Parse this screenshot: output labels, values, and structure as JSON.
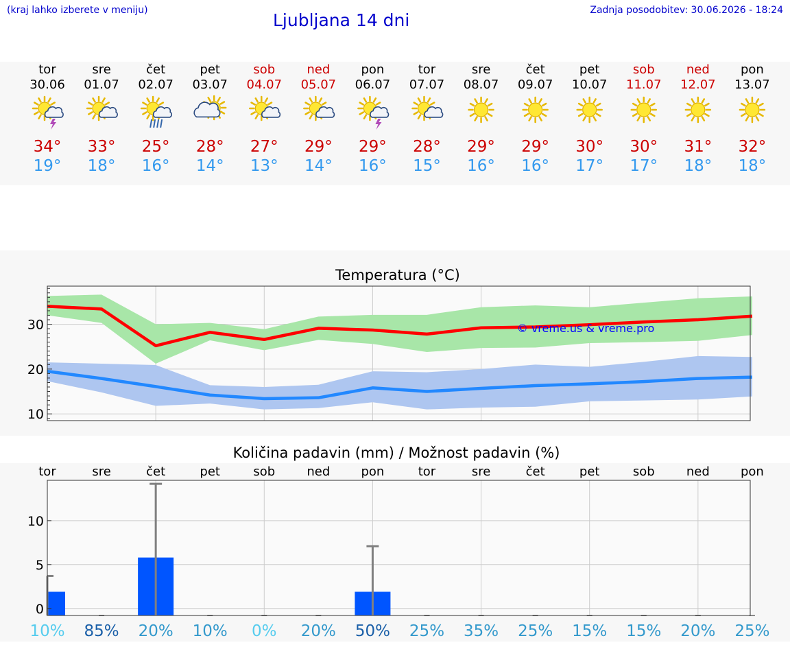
{
  "header": {
    "menu_hint": "(kraj lahko izberete v meniju)",
    "title": "Ljubljana 14 dni",
    "updated": "Zadnja posodobitev: 30.06.2026 - 18:24"
  },
  "days": [
    {
      "dow": "tor",
      "date": "30.06",
      "weekend": false,
      "icon": "sun-cloud-thunder-icon",
      "max": "34°",
      "min": "19°"
    },
    {
      "dow": "sre",
      "date": "01.07",
      "weekend": false,
      "icon": "sun-cloud-icon",
      "max": "33°",
      "min": "18°"
    },
    {
      "dow": "čet",
      "date": "02.07",
      "weekend": false,
      "icon": "sun-cloud-rain-icon",
      "max": "25°",
      "min": "16°"
    },
    {
      "dow": "pet",
      "date": "03.07",
      "weekend": false,
      "icon": "sun-big-cloud-icon",
      "max": "28°",
      "min": "14°"
    },
    {
      "dow": "sob",
      "date": "04.07",
      "weekend": true,
      "icon": "sun-cloud-icon",
      "max": "27°",
      "min": "13°"
    },
    {
      "dow": "ned",
      "date": "05.07",
      "weekend": true,
      "icon": "sun-cloud-icon",
      "max": "29°",
      "min": "14°"
    },
    {
      "dow": "pon",
      "date": "06.07",
      "weekend": false,
      "icon": "sun-cloud-thunder-icon",
      "max": "29°",
      "min": "16°"
    },
    {
      "dow": "tor",
      "date": "07.07",
      "weekend": false,
      "icon": "sun-cloud-icon",
      "max": "28°",
      "min": "15°"
    },
    {
      "dow": "sre",
      "date": "08.07",
      "weekend": false,
      "icon": "sun-icon",
      "max": "29°",
      "min": "16°"
    },
    {
      "dow": "čet",
      "date": "09.07",
      "weekend": false,
      "icon": "sun-icon",
      "max": "29°",
      "min": "16°"
    },
    {
      "dow": "pet",
      "date": "10.07",
      "weekend": false,
      "icon": "sun-icon",
      "max": "30°",
      "min": "17°"
    },
    {
      "dow": "sob",
      "date": "11.07",
      "weekend": true,
      "icon": "sun-icon",
      "max": "30°",
      "min": "17°"
    },
    {
      "dow": "ned",
      "date": "12.07",
      "weekend": true,
      "icon": "sun-icon",
      "max": "31°",
      "min": "18°"
    },
    {
      "dow": "pon",
      "date": "13.07",
      "weekend": false,
      "icon": "sun-icon",
      "max": "32°",
      "min": "18°"
    }
  ],
  "colors": {
    "weekday": "#000000",
    "weekend": "#cc0000",
    "max": "#cc0000",
    "min": "#3399ee",
    "max_line": "#ff0000",
    "max_band": "#a8e6a8",
    "min_line": "#2288ff",
    "min_band": "#aec6f0",
    "bar": "#0055ff",
    "errbar": "#808080",
    "watermark": "#0000ff"
  },
  "chart_data": [
    {
      "type": "line",
      "title": "Temperatura (°C)",
      "watermark": "© vreme.us & vreme.pro",
      "x": [
        "30.06",
        "01.07",
        "02.07",
        "03.07",
        "04.07",
        "05.07",
        "06.07",
        "07.07",
        "08.07",
        "09.07",
        "10.07",
        "11.07",
        "12.07",
        "13.07"
      ],
      "yticks": [
        10,
        20,
        30
      ],
      "ylim": [
        8.5,
        38.5
      ],
      "grid": true,
      "series": [
        {
          "role": "max",
          "values": [
            34,
            33.4,
            25.2,
            28.2,
            26.6,
            29.1,
            28.7,
            27.8,
            29.2,
            29.4,
            29.9,
            30.5,
            31.0,
            31.8
          ],
          "band_low": [
            32,
            30.3,
            21.2,
            26.4,
            24.2,
            26.5,
            25.6,
            23.8,
            24.7,
            24.8,
            25.8,
            26.0,
            26.3,
            27.6
          ],
          "band_high": [
            36.3,
            36.6,
            30.0,
            30.3,
            28.9,
            31.7,
            32.1,
            32.1,
            33.8,
            34.2,
            33.8,
            34.8,
            35.8,
            36.2
          ]
        },
        {
          "role": "min",
          "values": [
            19.5,
            17.9,
            16.1,
            14.2,
            13.4,
            13.6,
            15.8,
            15.0,
            15.7,
            16.3,
            16.7,
            17.2,
            17.9,
            18.2
          ],
          "band_low": [
            17.3,
            14.8,
            11.8,
            12.3,
            11.0,
            11.3,
            12.6,
            11.0,
            11.4,
            11.6,
            12.8,
            13.0,
            13.2,
            13.9
          ],
          "band_high": [
            21.5,
            21.2,
            20.9,
            16.4,
            16.0,
            16.5,
            19.5,
            19.3,
            20.0,
            21.0,
            20.5,
            21.6,
            22.9,
            22.7
          ]
        }
      ]
    },
    {
      "type": "bar",
      "title": "Količina padavin (mm) / Možnost padavin (%)",
      "categories": [
        "tor",
        "sre",
        "čet",
        "pet",
        "sob",
        "ned",
        "pon",
        "tor",
        "sre",
        "čet",
        "pet",
        "sob",
        "ned",
        "pon"
      ],
      "values": [
        1.9,
        0,
        5.8,
        0,
        0,
        0,
        1.9,
        0,
        0,
        0,
        0,
        0,
        0,
        0
      ],
      "error_high": [
        3.7,
        0,
        14.2,
        0,
        0,
        0,
        7.1,
        0,
        0,
        0,
        0,
        0,
        0,
        0
      ],
      "probability": [
        "10%",
        "85%",
        "20%",
        "10%",
        "0%",
        "20%",
        "50%",
        "25%",
        "35%",
        "25%",
        "15%",
        "15%",
        "20%",
        "25%"
      ],
      "probability_colors": [
        "#55ccee",
        "#1a5fa8",
        "#3399cc",
        "#3399cc",
        "#55ccee",
        "#3399cc",
        "#1a5fa8",
        "#3399cc",
        "#3399cc",
        "#3399cc",
        "#3399cc",
        "#3399cc",
        "#3399cc",
        "#3399cc"
      ],
      "yticks": [
        0,
        5,
        10
      ],
      "ylim": [
        -0.8,
        14.6
      ],
      "grid": true
    }
  ]
}
